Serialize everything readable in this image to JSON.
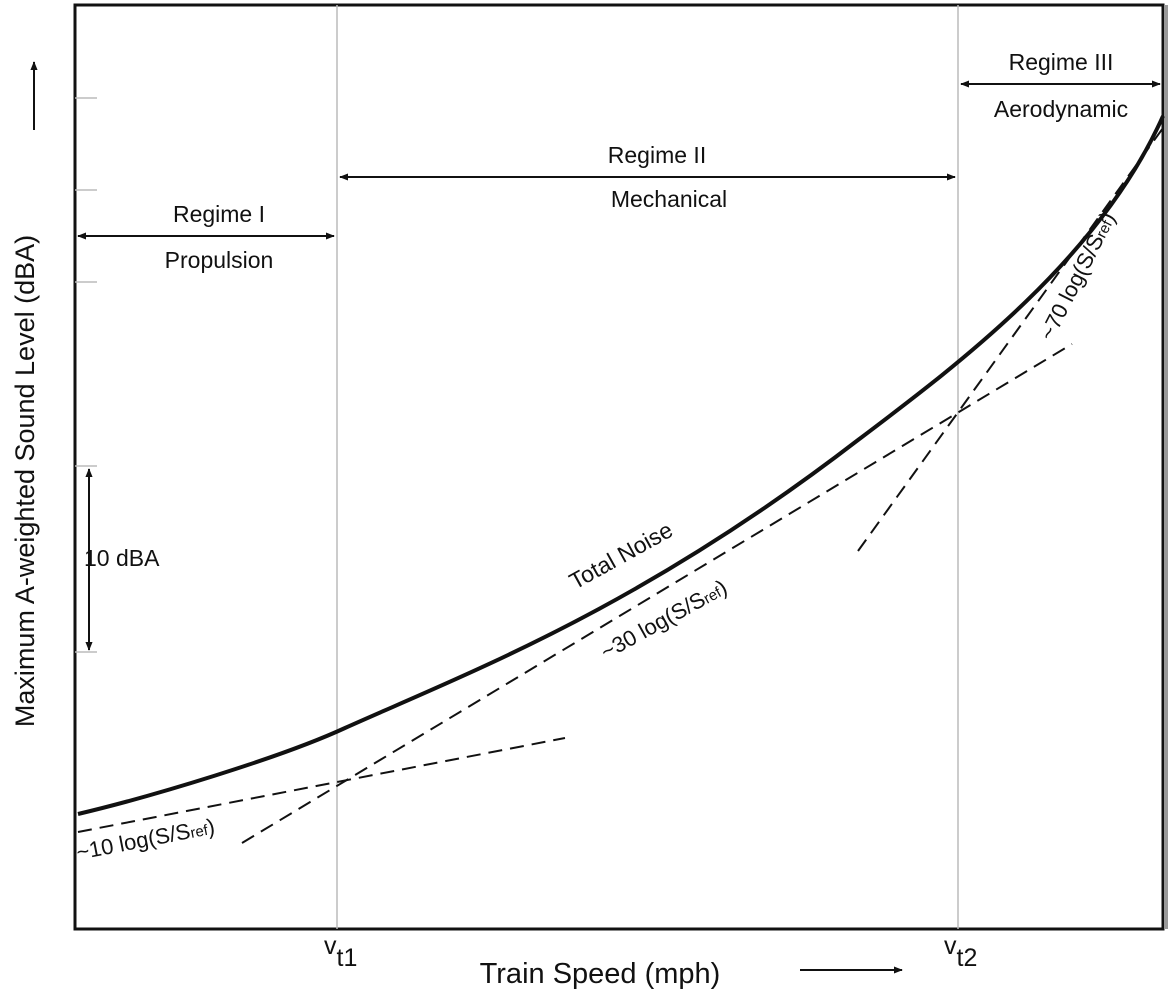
{
  "axes": {
    "ylabel": "Maximum A-weighted Sound Level (dBA)",
    "xlabel": "Train Speed (mph)",
    "x_markers": [
      {
        "main": "v",
        "sub": "t1"
      },
      {
        "main": "v",
        "sub": "t2"
      }
    ]
  },
  "regimes": [
    {
      "name": "Regime I",
      "source": "Propulsion"
    },
    {
      "name": "Regime II",
      "source": "Mechanical"
    },
    {
      "name": "Regime III",
      "source": "Aerodynamic"
    }
  ],
  "scale_bar": {
    "label": "10 dBA"
  },
  "curve": {
    "label": "Total Noise"
  },
  "slopes": [
    {
      "prefix": "~10 log(S/S",
      "sub": "ref",
      "suffix": ")"
    },
    {
      "prefix": "~30 log(S/S",
      "sub": "ref",
      "suffix": ")"
    },
    {
      "prefix": "~70 log(S/S",
      "sub": "ref",
      "suffix": ")"
    }
  ]
}
